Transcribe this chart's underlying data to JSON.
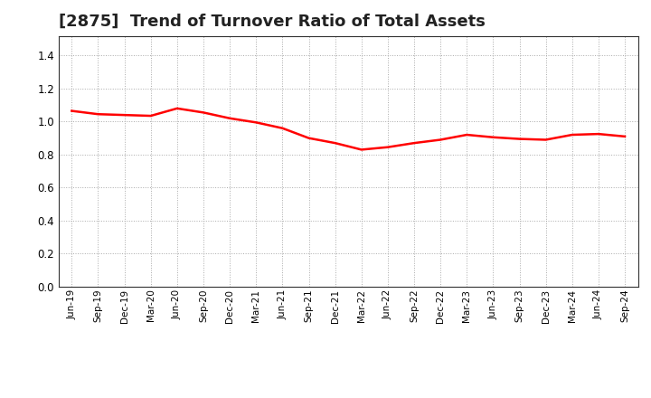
{
  "title": "[2875]  Trend of Turnover Ratio of Total Assets",
  "title_fontsize": 13,
  "line_color": "#FF0000",
  "line_width": 1.8,
  "background_color": "#FFFFFF",
  "grid_color": "#AAAAAA",
  "ylim": [
    0.0,
    1.52
  ],
  "yticks": [
    0.0,
    0.2,
    0.4,
    0.6,
    0.8,
    1.0,
    1.2,
    1.4
  ],
  "x_labels": [
    "Jun-19",
    "Sep-19",
    "Dec-19",
    "Mar-20",
    "Jun-20",
    "Sep-20",
    "Dec-20",
    "Mar-21",
    "Jun-21",
    "Sep-21",
    "Dec-21",
    "Mar-22",
    "Jun-22",
    "Sep-22",
    "Dec-22",
    "Mar-23",
    "Jun-23",
    "Sep-23",
    "Dec-23",
    "Mar-24",
    "Jun-24",
    "Sep-24"
  ],
  "y_values": [
    1.065,
    1.045,
    1.04,
    1.035,
    1.08,
    1.055,
    1.02,
    0.995,
    0.96,
    0.9,
    0.87,
    0.83,
    0.845,
    0.87,
    0.89,
    0.92,
    0.905,
    0.895,
    0.89,
    0.92,
    0.925,
    0.91
  ]
}
